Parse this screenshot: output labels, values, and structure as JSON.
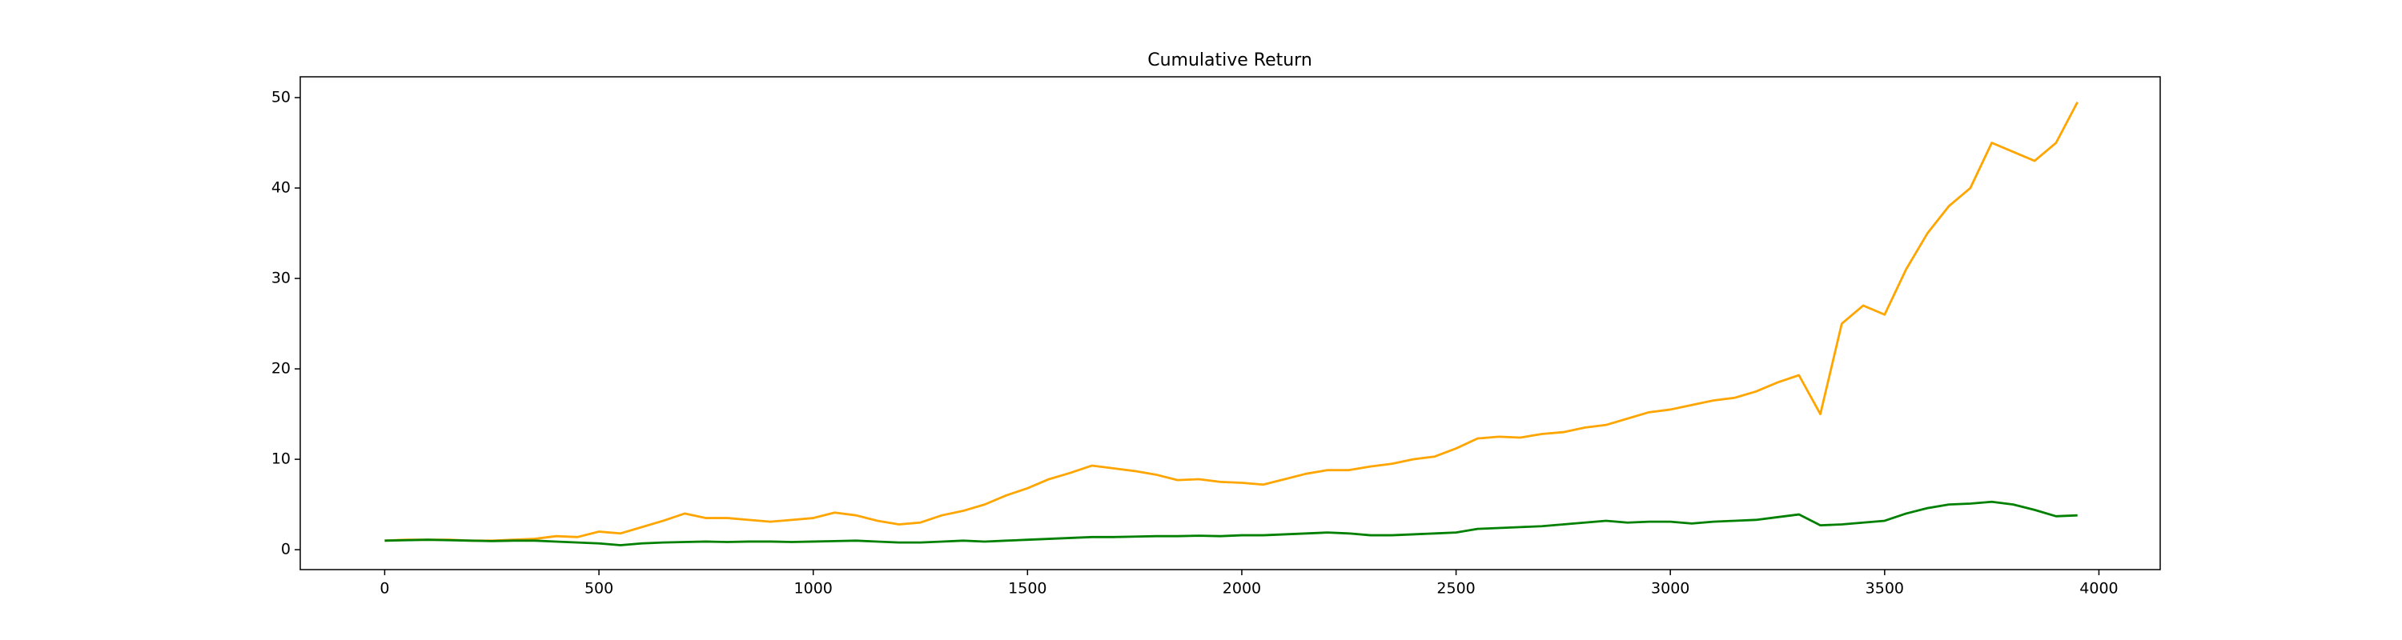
{
  "chart_data": {
    "type": "line",
    "title": "Cumulative Return",
    "x": [
      0,
      50,
      100,
      150,
      200,
      250,
      300,
      350,
      400,
      450,
      500,
      550,
      600,
      650,
      700,
      750,
      800,
      850,
      900,
      950,
      1000,
      1050,
      1100,
      1150,
      1200,
      1250,
      1300,
      1350,
      1400,
      1450,
      1500,
      1550,
      1600,
      1650,
      1700,
      1750,
      1800,
      1850,
      1900,
      1950,
      2000,
      2050,
      2100,
      2150,
      2200,
      2250,
      2300,
      2350,
      2400,
      2450,
      2500,
      2550,
      2600,
      2650,
      2700,
      2750,
      2800,
      2850,
      2900,
      2950,
      3000,
      3050,
      3100,
      3150,
      3200,
      3250,
      3300,
      3350,
      3400,
      3450,
      3500,
      3550,
      3600,
      3650,
      3700,
      3750,
      3800,
      3850,
      3900,
      3950
    ],
    "series": [
      {
        "color": "#ffa500",
        "values": [
          1.0,
          1.1,
          1.1,
          1.1,
          1.0,
          1.0,
          1.1,
          1.2,
          1.5,
          1.4,
          2.0,
          1.8,
          2.5,
          3.2,
          4.0,
          3.5,
          3.5,
          3.3,
          3.1,
          3.3,
          3.5,
          4.1,
          3.8,
          3.2,
          2.8,
          3.0,
          3.8,
          4.3,
          5.0,
          6.0,
          6.8,
          7.8,
          8.5,
          9.3,
          9.0,
          8.7,
          8.3,
          7.7,
          7.8,
          7.5,
          7.4,
          7.2,
          7.8,
          8.4,
          8.8,
          8.8,
          9.2,
          9.5,
          10.0,
          10.3,
          11.2,
          12.3,
          12.5,
          12.4,
          12.8,
          13.0,
          13.5,
          13.8,
          14.5,
          15.2,
          15.5,
          16.0,
          16.5,
          16.8,
          17.5,
          18.5,
          19.3,
          15.0,
          25,
          27,
          26,
          31,
          35,
          38,
          40,
          45,
          44,
          43,
          45,
          49.5
        ]
      },
      {
        "color": "#008000",
        "values": [
          1.0,
          1.05,
          1.1,
          1.05,
          1.0,
          0.95,
          1.0,
          1.0,
          0.9,
          0.8,
          0.7,
          0.5,
          0.7,
          0.8,
          0.85,
          0.9,
          0.85,
          0.9,
          0.9,
          0.85,
          0.9,
          0.95,
          1.0,
          0.9,
          0.8,
          0.8,
          0.9,
          1.0,
          0.9,
          1.0,
          1.1,
          1.2,
          1.3,
          1.4,
          1.4,
          1.45,
          1.5,
          1.5,
          1.55,
          1.5,
          1.6,
          1.6,
          1.7,
          1.8,
          1.9,
          1.8,
          1.6,
          1.6,
          1.7,
          1.8,
          1.9,
          2.3,
          2.4,
          2.5,
          2.6,
          2.8,
          3.0,
          3.2,
          3.0,
          3.1,
          3.1,
          2.9,
          3.1,
          3.2,
          3.3,
          3.6,
          3.9,
          2.7,
          2.8,
          3.0,
          3.2,
          4.0,
          4.6,
          5.0,
          5.1,
          5.3,
          5.0,
          4.4,
          3.7,
          3.8
        ]
      }
    ],
    "xlim": [
      -197,
      4143
    ],
    "ylim": [
      -2.2,
      52.3
    ],
    "xticks": [
      0,
      500,
      1000,
      1500,
      2000,
      2500,
      3000,
      3500,
      4000
    ],
    "yticks": [
      0,
      10,
      20,
      30,
      40,
      50
    ]
  }
}
